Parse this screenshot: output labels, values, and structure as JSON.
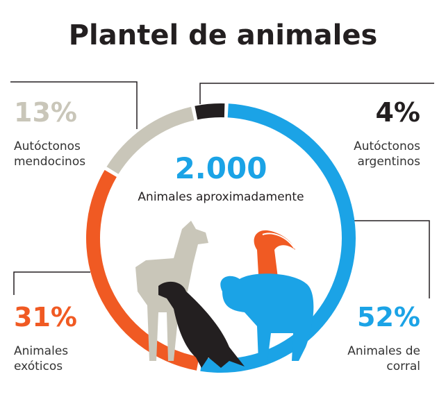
{
  "title": "Plantel de animales",
  "chart_data": {
    "type": "donut",
    "center_text": "2.000",
    "center_subtitle": "Animales aproximadamente",
    "categories": [
      "Autóctonos argentinos",
      "Animales de corral",
      "Animales exóticos",
      "Autóctonos mendocinos"
    ],
    "values": [
      4,
      52,
      31,
      13
    ],
    "value_labels": [
      "4%",
      "52%",
      "31%",
      "13%"
    ],
    "colors": [
      "#231f20",
      "#1ba3e6",
      "#f05a23",
      "#c9c6b9"
    ]
  }
}
